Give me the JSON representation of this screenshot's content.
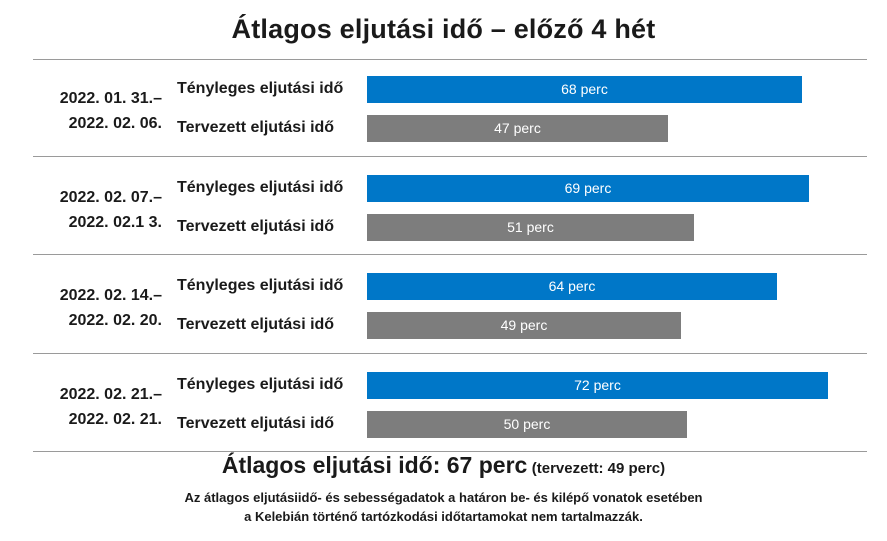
{
  "chart_data": {
    "type": "bar",
    "orientation": "horizontal",
    "title": "Átlagos eljutási idő – előző 4 hét",
    "bar_max_value": 72,
    "groups": [
      {
        "period_line1": "2022. 01. 31.–",
        "period_line2": "2022. 02. 06.",
        "bars": [
          {
            "label": "Tényleges eljutási idő",
            "value": 68,
            "value_label": "68 perc",
            "kind": "actual"
          },
          {
            "label": "Tervezett eljutási idő",
            "value": 47,
            "value_label": "47 perc",
            "kind": "planned"
          }
        ]
      },
      {
        "period_line1": "2022. 02. 07.–",
        "period_line2": "2022. 02.1 3.",
        "bars": [
          {
            "label": "Tényleges eljutási idő",
            "value": 69,
            "value_label": "69 perc",
            "kind": "actual"
          },
          {
            "label": "Tervezett eljutási idő",
            "value": 51,
            "value_label": "51 perc",
            "kind": "planned"
          }
        ]
      },
      {
        "period_line1": "2022. 02. 14.–",
        "period_line2": "2022. 02. 20.",
        "bars": [
          {
            "label": "Tényleges eljutási idő",
            "value": 64,
            "value_label": "64 perc",
            "kind": "actual"
          },
          {
            "label": "Tervezett eljutási idő",
            "value": 49,
            "value_label": "49 perc",
            "kind": "planned"
          }
        ]
      },
      {
        "period_line1": "2022. 02. 21.–",
        "period_line2": "2022. 02. 21.",
        "bars": [
          {
            "label": "Tényleges eljutási idő",
            "value": 72,
            "value_label": "72 perc",
            "kind": "actual"
          },
          {
            "label": "Tervezett eljutási idő",
            "value": 50,
            "value_label": "50 perc",
            "kind": "planned"
          }
        ]
      }
    ],
    "colors": {
      "actual": "#0077c8",
      "planned": "#7d7d7d"
    }
  },
  "summary": {
    "main": "Átlagos eljutási idő: 67 perc",
    "sub": "(tervezett: 49 perc)"
  },
  "note": {
    "line1": "Az átlagos eljutásiidő- és sebességadatok a határon be- és kilépő vonatok esetében",
    "line2": "a Kelebián történő tartózkodási időtartamokat nem tartalmazzák."
  }
}
